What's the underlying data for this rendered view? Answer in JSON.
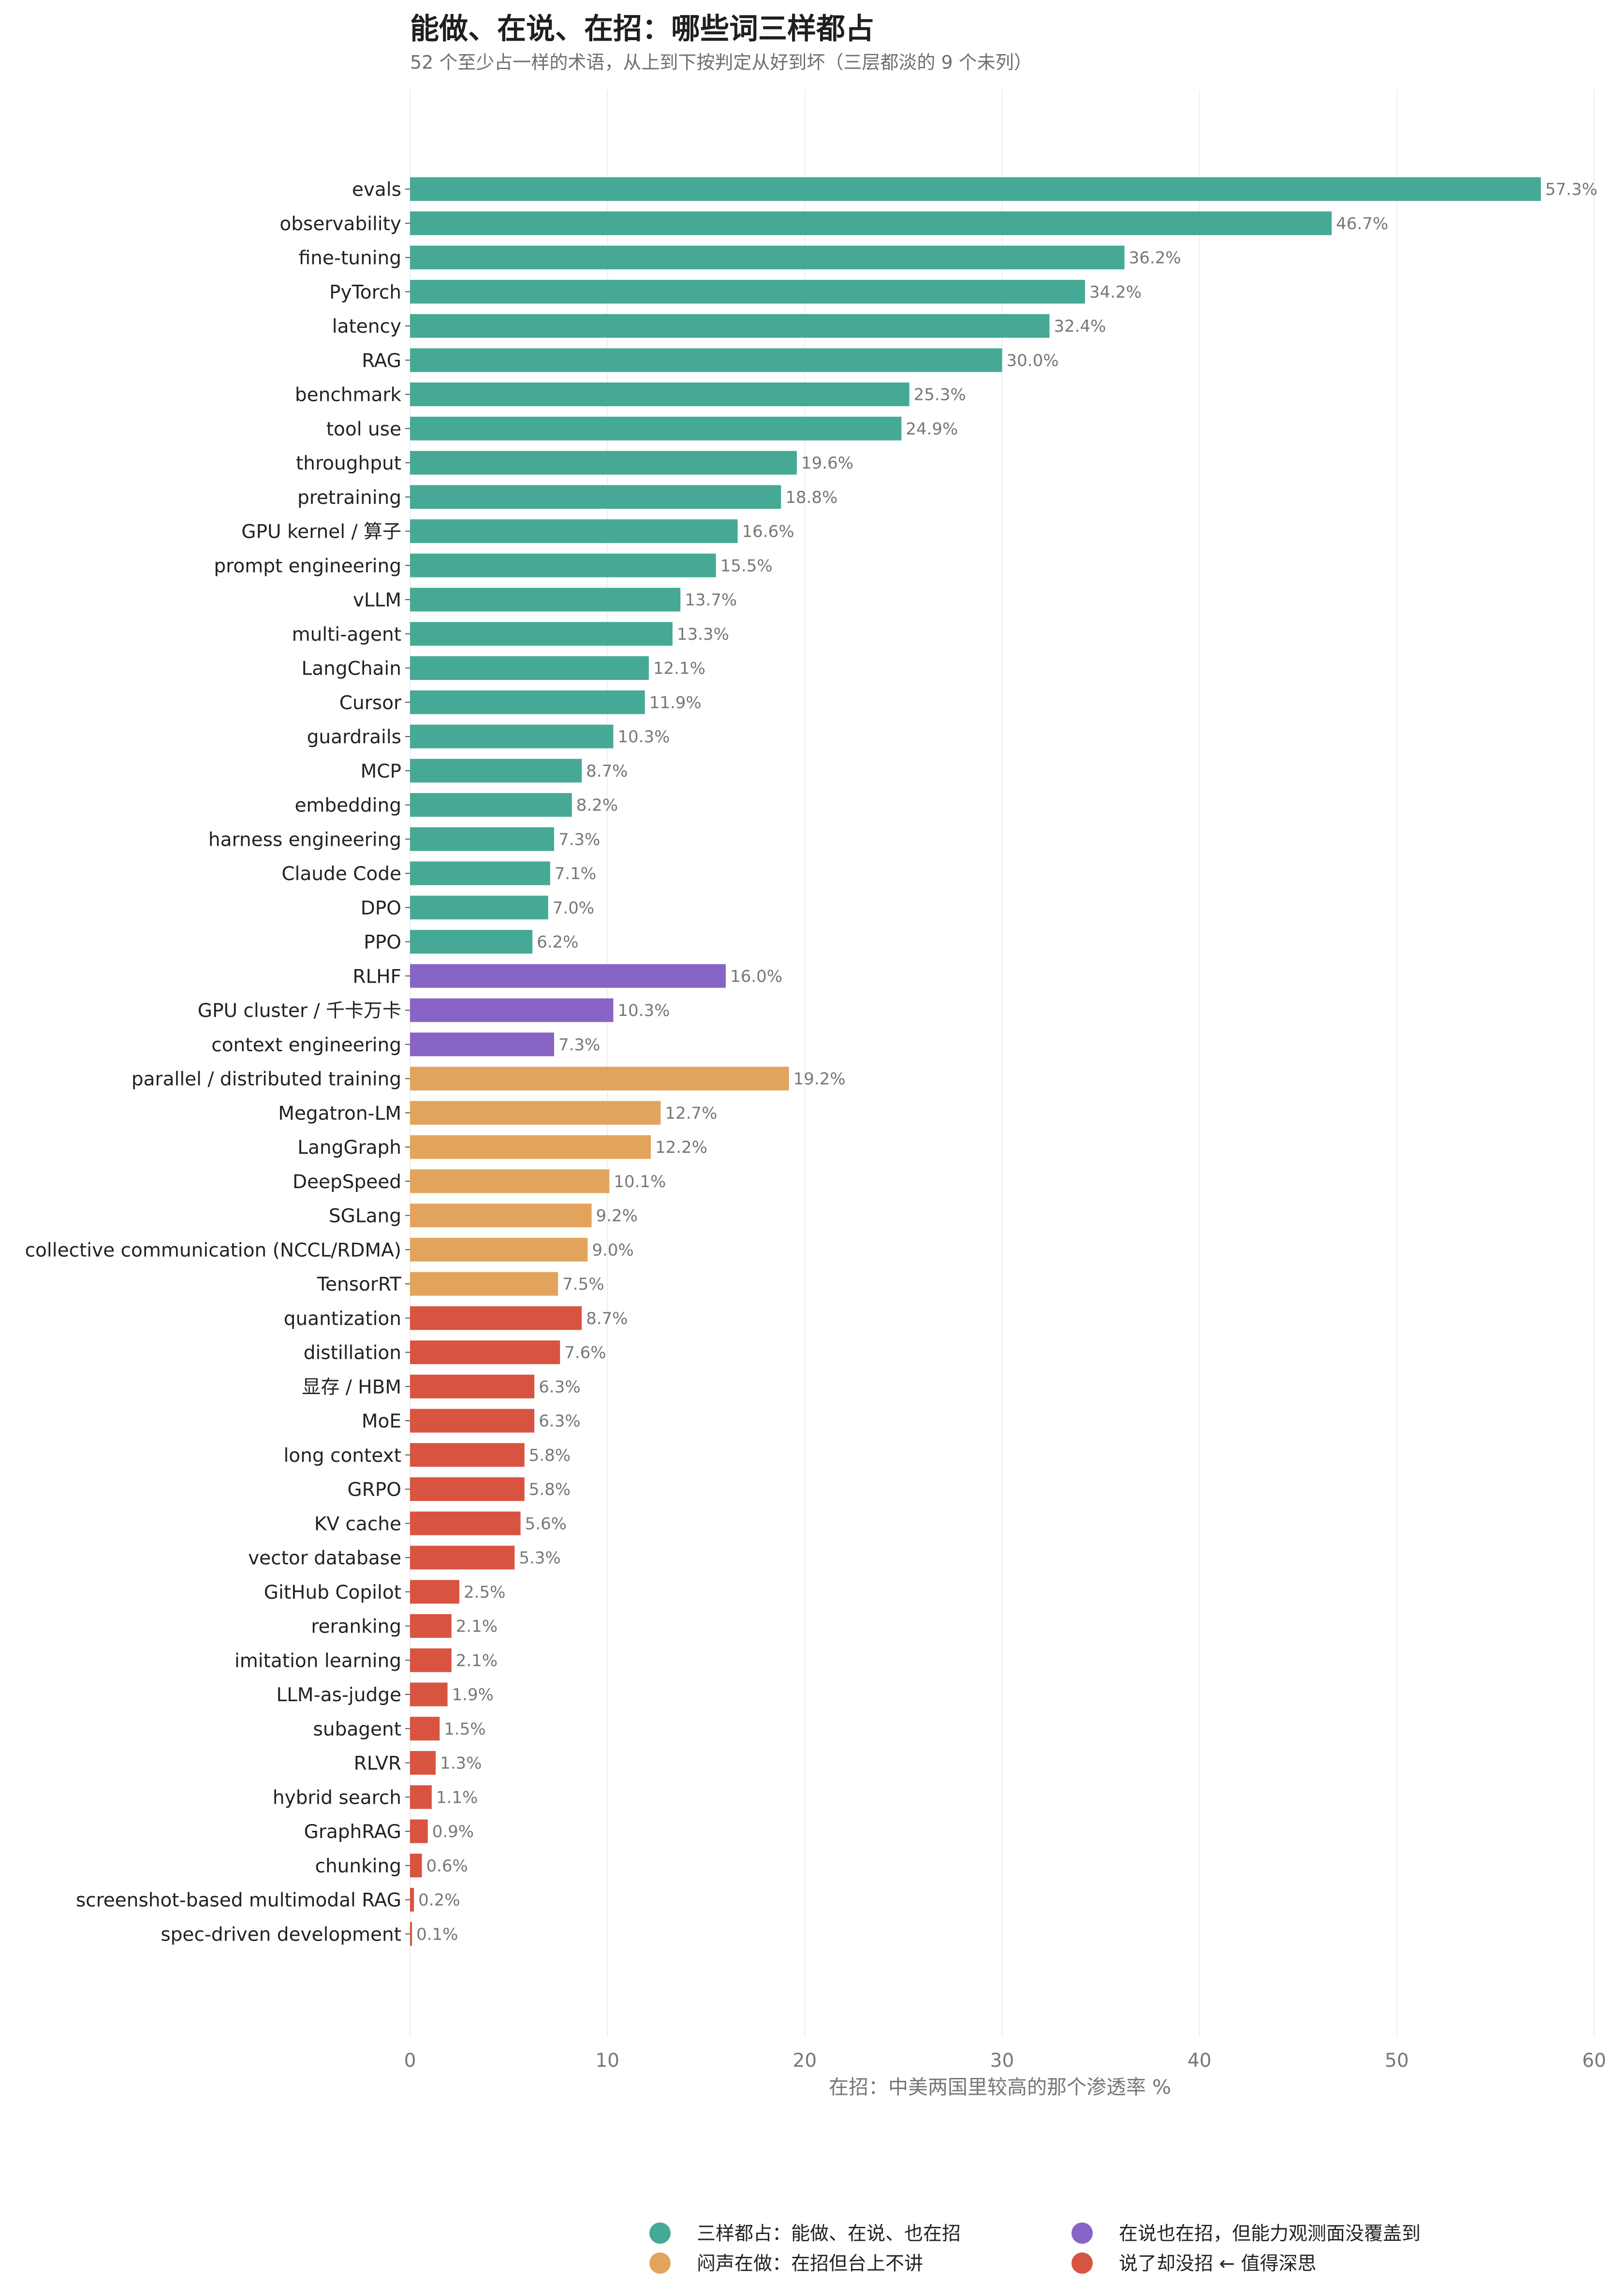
{
  "title": "能做、在说、在招：哪些词三样都占",
  "subtitle": "52 个至少占一样的术语，从上到下按判定从好到坏（三层都淡的 9 个未列）",
  "colors": {
    "green": "#45A996",
    "purple": "#8964C7",
    "orange": "#E2A45C",
    "red": "#D95440",
    "grid": "#eeeeee",
    "text": "#222222",
    "muted": "#777777"
  },
  "legend": [
    {
      "key": "green",
      "label": "三样都占：能做、在说、也在招"
    },
    {
      "key": "orange",
      "label": "闷声在做：在招但台上不讲"
    },
    {
      "key": "purple",
      "label": "在说也在招，但能力观测面没覆盖到"
    },
    {
      "key": "red",
      "label": "说了却没招 ← 值得深思"
    }
  ],
  "chart_data": {
    "type": "bar",
    "orientation": "horizontal",
    "xlabel": "在招：中美两国里较高的那个渗透率 %",
    "xlim": [
      0,
      60
    ],
    "xticks": [
      0,
      10,
      20,
      30,
      40,
      50,
      60
    ],
    "value_suffix": "%",
    "grid": true,
    "legend_position": "bottom",
    "bars": [
      {
        "label": "evals",
        "value": 57.3,
        "group": "green"
      },
      {
        "label": "observability",
        "value": 46.7,
        "group": "green"
      },
      {
        "label": "fine-tuning",
        "value": 36.2,
        "group": "green"
      },
      {
        "label": "PyTorch",
        "value": 34.2,
        "group": "green"
      },
      {
        "label": "latency",
        "value": 32.4,
        "group": "green"
      },
      {
        "label": "RAG",
        "value": 30.0,
        "group": "green"
      },
      {
        "label": "benchmark",
        "value": 25.3,
        "group": "green"
      },
      {
        "label": "tool use",
        "value": 24.9,
        "group": "green"
      },
      {
        "label": "throughput",
        "value": 19.6,
        "group": "green"
      },
      {
        "label": "pretraining",
        "value": 18.8,
        "group": "green"
      },
      {
        "label": "GPU kernel / 算子",
        "value": 16.6,
        "group": "green"
      },
      {
        "label": "prompt engineering",
        "value": 15.5,
        "group": "green"
      },
      {
        "label": "vLLM",
        "value": 13.7,
        "group": "green"
      },
      {
        "label": "multi-agent",
        "value": 13.3,
        "group": "green"
      },
      {
        "label": "LangChain",
        "value": 12.1,
        "group": "green"
      },
      {
        "label": "Cursor",
        "value": 11.9,
        "group": "green"
      },
      {
        "label": "guardrails",
        "value": 10.3,
        "group": "green"
      },
      {
        "label": "MCP",
        "value": 8.7,
        "group": "green"
      },
      {
        "label": "embedding",
        "value": 8.2,
        "group": "green"
      },
      {
        "label": "harness engineering",
        "value": 7.3,
        "group": "green"
      },
      {
        "label": "Claude Code",
        "value": 7.1,
        "group": "green"
      },
      {
        "label": "DPO",
        "value": 7.0,
        "group": "green"
      },
      {
        "label": "PPO",
        "value": 6.2,
        "group": "green"
      },
      {
        "label": "RLHF",
        "value": 16.0,
        "group": "purple"
      },
      {
        "label": "GPU cluster / 千卡万卡",
        "value": 10.3,
        "group": "purple"
      },
      {
        "label": "context engineering",
        "value": 7.3,
        "group": "purple"
      },
      {
        "label": "parallel / distributed training",
        "value": 19.2,
        "group": "orange"
      },
      {
        "label": "Megatron-LM",
        "value": 12.7,
        "group": "orange"
      },
      {
        "label": "LangGraph",
        "value": 12.2,
        "group": "orange"
      },
      {
        "label": "DeepSpeed",
        "value": 10.1,
        "group": "orange"
      },
      {
        "label": "SGLang",
        "value": 9.2,
        "group": "orange"
      },
      {
        "label": "collective communication (NCCL/RDMA)",
        "value": 9.0,
        "group": "orange"
      },
      {
        "label": "TensorRT",
        "value": 7.5,
        "group": "orange"
      },
      {
        "label": "quantization",
        "value": 8.7,
        "group": "red"
      },
      {
        "label": "distillation",
        "value": 7.6,
        "group": "red"
      },
      {
        "label": "显存 / HBM",
        "value": 6.3,
        "group": "red"
      },
      {
        "label": "MoE",
        "value": 6.3,
        "group": "red"
      },
      {
        "label": "long context",
        "value": 5.8,
        "group": "red"
      },
      {
        "label": "GRPO",
        "value": 5.8,
        "group": "red"
      },
      {
        "label": "KV cache",
        "value": 5.6,
        "group": "red"
      },
      {
        "label": "vector database",
        "value": 5.3,
        "group": "red"
      },
      {
        "label": "GitHub Copilot",
        "value": 2.5,
        "group": "red"
      },
      {
        "label": "reranking",
        "value": 2.1,
        "group": "red"
      },
      {
        "label": "imitation learning",
        "value": 2.1,
        "group": "red"
      },
      {
        "label": "LLM-as-judge",
        "value": 1.9,
        "group": "red"
      },
      {
        "label": "subagent",
        "value": 1.5,
        "group": "red"
      },
      {
        "label": "RLVR",
        "value": 1.3,
        "group": "red"
      },
      {
        "label": "hybrid search",
        "value": 1.1,
        "group": "red"
      },
      {
        "label": "GraphRAG",
        "value": 0.9,
        "group": "red"
      },
      {
        "label": "chunking",
        "value": 0.6,
        "group": "red"
      },
      {
        "label": "screenshot-based multimodal RAG",
        "value": 0.2,
        "group": "red"
      },
      {
        "label": "spec-driven development",
        "value": 0.1,
        "group": "red"
      }
    ]
  }
}
